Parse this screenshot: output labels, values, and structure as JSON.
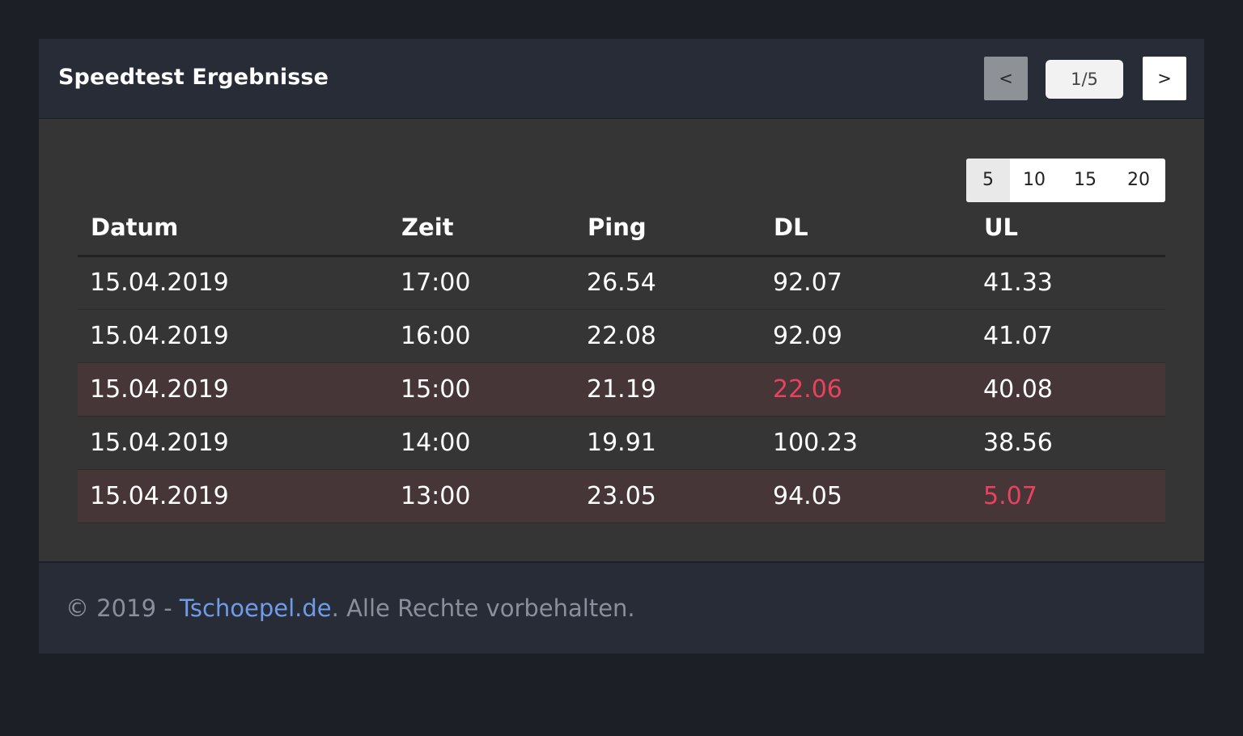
{
  "header": {
    "title": "Speedtest Ergebnisse",
    "prev_label": "<",
    "page_indicator": "1/5",
    "next_label": ">"
  },
  "page_size": {
    "options": [
      "5",
      "10",
      "15",
      "20"
    ],
    "selected": "5"
  },
  "table": {
    "columns": [
      "Datum",
      "Zeit",
      "Ping",
      "DL",
      "UL"
    ],
    "rows": [
      {
        "date": "15.04.2019",
        "time": "17:00",
        "ping": "26.54",
        "dl": "92.07",
        "ul": "41.33",
        "warn": false,
        "dl_bad": false,
        "ul_bad": false
      },
      {
        "date": "15.04.2019",
        "time": "16:00",
        "ping": "22.08",
        "dl": "92.09",
        "ul": "41.07",
        "warn": false,
        "dl_bad": false,
        "ul_bad": false
      },
      {
        "date": "15.04.2019",
        "time": "15:00",
        "ping": "21.19",
        "dl": "22.06",
        "ul": "40.08",
        "warn": true,
        "dl_bad": true,
        "ul_bad": false
      },
      {
        "date": "15.04.2019",
        "time": "14:00",
        "ping": "19.91",
        "dl": "100.23",
        "ul": "38.56",
        "warn": false,
        "dl_bad": false,
        "ul_bad": false
      },
      {
        "date": "15.04.2019",
        "time": "13:00",
        "ping": "23.05",
        "dl": "94.05",
        "ul": "5.07",
        "warn": true,
        "dl_bad": false,
        "ul_bad": true
      }
    ]
  },
  "footer": {
    "copyright": "© 2019 - ",
    "link_text": "Tschoepel.de",
    "suffix": ". Alle Rechte vorbehalten."
  },
  "colors": {
    "page_background": "#1d1f27",
    "card_background": "#353535",
    "header_background": "#282c37",
    "warning_row": "#473637",
    "bad_value": "#e8425e",
    "link": "#6f9be8"
  }
}
